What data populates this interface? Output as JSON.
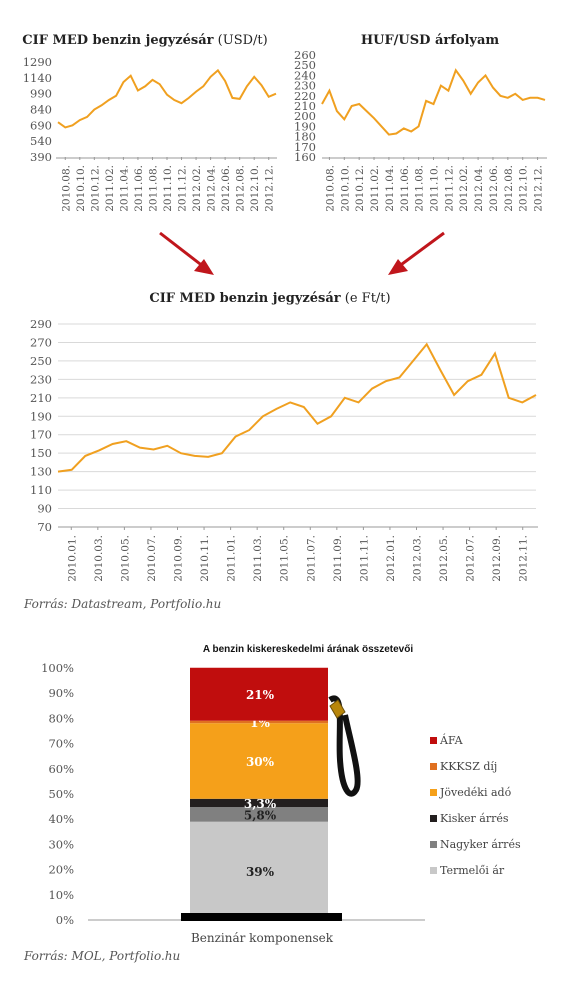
{
  "colors": {
    "line": "#f0a020",
    "axis": "#999999",
    "grid": "#d9d9d9",
    "tick": "#555555",
    "arrow": "#c0161c"
  },
  "source_top": "Forrás: Datastream, Portfolio.hu",
  "source_bottom": "Forrás: MOL, Portfolio.hu",
  "chart_data": [
    {
      "type": "line",
      "title_bold": "CIF MED benzin jegyzésár",
      "title_unit": "(USD/t)",
      "yticks": [
        390,
        540,
        690,
        840,
        990,
        1140,
        1290
      ],
      "ylim": [
        390,
        1290
      ],
      "xticks": [
        "2010.08.",
        "2010.10.",
        "2010.12.",
        "2011.02.",
        "2011.04.",
        "2011.06.",
        "2011.08.",
        "2011.10.",
        "2011.12.",
        "2012.02.",
        "2012.04.",
        "2012.06.",
        "2012.08.",
        "2012.10.",
        "2012.12."
      ],
      "x": [
        0,
        0.5,
        1,
        1.5,
        2,
        2.5,
        3,
        3.5,
        4,
        4.5,
        5,
        5.5,
        6,
        6.5,
        7,
        7.5,
        8,
        8.5,
        9,
        9.5,
        10,
        10.5,
        11,
        11.5,
        12,
        12.5,
        13,
        13.5,
        14,
        14.5,
        15
      ],
      "xlim": [
        0,
        15
      ],
      "values": [
        720,
        670,
        690,
        740,
        770,
        840,
        880,
        930,
        970,
        1100,
        1160,
        1020,
        1060,
        1120,
        1080,
        980,
        930,
        900,
        950,
        1010,
        1060,
        1150,
        1210,
        1110,
        950,
        940,
        1060,
        1150,
        1070,
        960,
        990
      ]
    },
    {
      "type": "line",
      "title_bold": "HUF/USD árfolyam",
      "title_unit": "",
      "yticks": [
        160,
        170,
        180,
        190,
        200,
        210,
        220,
        230,
        240,
        250,
        260
      ],
      "ylim": [
        160,
        260
      ],
      "xticks": [
        "2010.08.",
        "2010.10.",
        "2010.12.",
        "2011.02.",
        "2011.04.",
        "2011.06.",
        "2011.08.",
        "2011.10.",
        "2011.12.",
        "2012.02.",
        "2012.04.",
        "2012.06.",
        "2012.08.",
        "2012.10.",
        "2012.12."
      ],
      "x": [
        0,
        0.5,
        1,
        1.5,
        2,
        2.5,
        3,
        3.5,
        4,
        4.5,
        5,
        5.5,
        6,
        6.5,
        7,
        7.5,
        8,
        8.5,
        9,
        9.5,
        10,
        10.5,
        11,
        11.5,
        12,
        12.5,
        13,
        13.5,
        14,
        14.5,
        15
      ],
      "xlim": [
        0,
        15
      ],
      "values": [
        212,
        225,
        205,
        197,
        210,
        212,
        205,
        198,
        190,
        182,
        183,
        188,
        185,
        190,
        215,
        212,
        230,
        225,
        245,
        235,
        222,
        233,
        240,
        228,
        220,
        218,
        222,
        216,
        218,
        218,
        216
      ]
    },
    {
      "type": "line",
      "title_bold": "CIF MED  benzin jegyzésár",
      "title_unit": "(e Ft/t)",
      "yticks": [
        70,
        90,
        110,
        130,
        150,
        170,
        190,
        210,
        230,
        250,
        270,
        290
      ],
      "ylim": [
        70,
        290
      ],
      "xticks": [
        "2010.01.",
        "2010.03.",
        "2010.05.",
        "2010.07.",
        "2010.09.",
        "2010.11.",
        "2011.01.",
        "2011.03.",
        "2011.05.",
        "2011.07.",
        "2011.09.",
        "2011.11.",
        "2012.01.",
        "2012.03.",
        "2012.05.",
        "2012.07.",
        "2012.09.",
        "2012.11."
      ],
      "x": [
        0,
        1,
        2,
        3,
        4,
        5,
        6,
        7,
        8,
        9,
        10,
        11,
        12,
        13,
        14,
        15,
        16,
        17,
        18,
        19,
        20,
        21,
        22,
        23,
        24,
        25,
        26,
        27,
        28,
        29,
        30,
        31,
        32,
        33,
        34,
        35
      ],
      "xlim": [
        0,
        35
      ],
      "values": [
        130,
        132,
        147,
        153,
        160,
        163,
        156,
        154,
        158,
        150,
        147,
        146,
        150,
        168,
        175,
        190,
        198,
        205,
        200,
        182,
        190,
        210,
        205,
        220,
        228,
        232,
        250,
        268,
        240,
        213,
        228,
        235,
        258,
        210,
        205,
        213
      ]
    },
    {
      "type": "bar",
      "stacked": true,
      "title": "A benzin kiskereskedelmi árának összetevői",
      "category": "Benzinár komponensek",
      "yticks": [
        "0%",
        "10%",
        "20%",
        "30%",
        "40%",
        "50%",
        "60%",
        "70%",
        "80%",
        "90%",
        "100%"
      ],
      "ylim": [
        0,
        100
      ],
      "legend_position": "right",
      "series": [
        {
          "name": "Termelői ár",
          "value": 39,
          "label": "39%",
          "color": "#c8c8c8"
        },
        {
          "name": "Nagyker árrés",
          "value": 5.8,
          "label": "5,8%",
          "color": "#808080"
        },
        {
          "name": "Kisker árrés",
          "value": 3.3,
          "label": "3,3%",
          "color": "#231f1f"
        },
        {
          "name": "Jövedéki adó",
          "value": 30,
          "label": "30%",
          "color": "#f5a01a"
        },
        {
          "name": "KKKSZ díj",
          "value": 1,
          "label": "1%",
          "color": "#e07020"
        },
        {
          "name": "ÁFA",
          "value": 21,
          "label": "21%",
          "color": "#c00d0d"
        }
      ],
      "legend_order": [
        "ÁFA",
        "KKKSZ díj",
        "Jövedéki adó",
        "Kisker árrés",
        "Nagyker árrés",
        "Termelői ár"
      ]
    }
  ]
}
